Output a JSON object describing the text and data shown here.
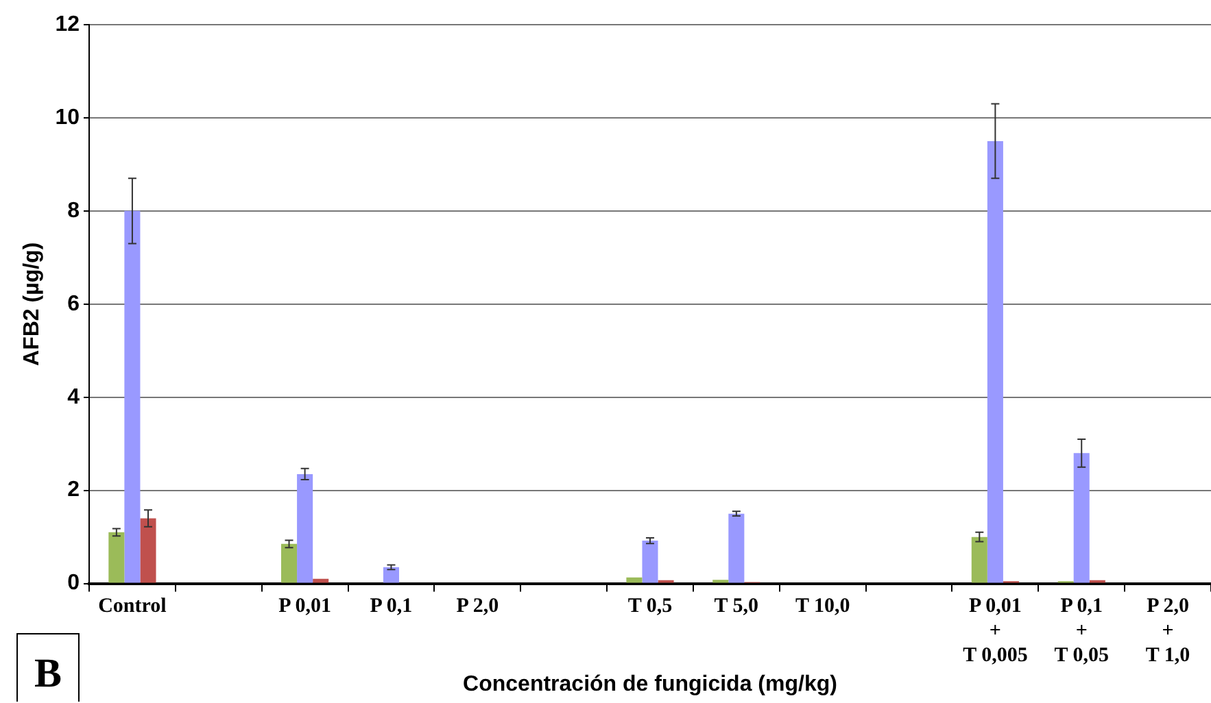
{
  "chart_data": {
    "type": "bar",
    "xlabel": "Concentración de fungicida (mg/kg)",
    "ylabel": "AFB2 (µg/g)",
    "categories": [
      "Control",
      null,
      "P 0,01",
      "P 0,1",
      "P 2,0",
      null,
      "T 0,5",
      "T 5,0",
      "T 10,0",
      null,
      "P 0,01\n+\nT 0,005",
      "P 0,1\n+\nT 0,05",
      "P 2,0\n+\nT 1,0"
    ],
    "series": [
      {
        "color": "#9bbb59",
        "values": [
          1.1,
          null,
          0.85,
          0,
          0,
          null,
          0.13,
          0.08,
          0,
          null,
          1.0,
          0.05,
          0
        ],
        "errors": [
          0.08,
          null,
          0.08,
          null,
          null,
          null,
          null,
          null,
          null,
          null,
          0.1,
          null,
          null
        ]
      },
      {
        "color": "#9999ff",
        "values": [
          8.0,
          null,
          2.35,
          0.35,
          0,
          null,
          0.92,
          1.5,
          0,
          null,
          9.5,
          2.8,
          0
        ],
        "errors": [
          0.7,
          null,
          0.12,
          0.05,
          null,
          null,
          0.06,
          0.05,
          null,
          null,
          0.8,
          0.3,
          null
        ]
      },
      {
        "color": "#c0504d",
        "values": [
          1.4,
          null,
          0.1,
          0,
          0,
          null,
          0.07,
          0.03,
          0,
          null,
          0.05,
          0.07,
          0
        ],
        "errors": [
          0.18,
          null,
          null,
          null,
          null,
          null,
          null,
          null,
          null,
          null,
          null,
          null,
          null
        ]
      }
    ],
    "ylim": [
      0,
      12
    ],
    "yticks": [
      0,
      2,
      4,
      6,
      8,
      10,
      12
    ],
    "grid": "y",
    "legend": false,
    "annotations": [
      "B"
    ]
  }
}
